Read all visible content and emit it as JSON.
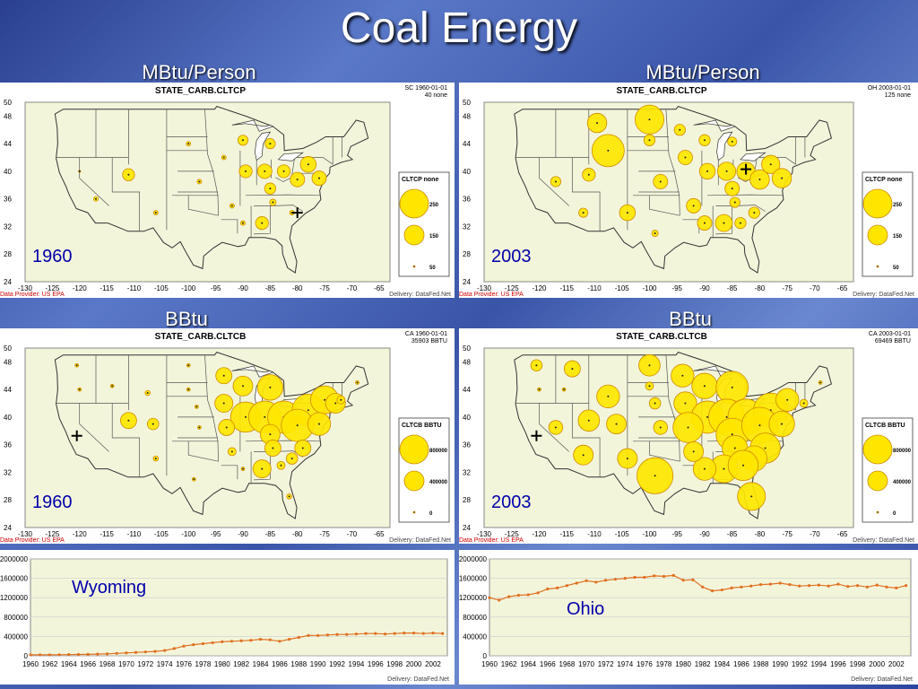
{
  "title": "Coal Energy",
  "subtitles": [
    "MBtu/Person",
    "MBtu/Person",
    "BBtu",
    "BBtu"
  ],
  "maps": [
    {
      "id": "tl",
      "header": "STATE_CARB.CLTCP",
      "corner": [
        "SC 1960-01-01",
        "40 none"
      ],
      "year": "1960",
      "provider": "Data Provider: US EPA",
      "delivery": "Delivery: DataFed.Net",
      "legend": {
        "title": "CLTCP none",
        "items": [
          "250",
          "150",
          "50"
        ],
        "values": [
          250,
          150,
          50
        ]
      },
      "bubbles": [
        [
          -120,
          40,
          1
        ],
        [
          -111,
          39.5,
          35
        ],
        [
          -90,
          44.5,
          25
        ],
        [
          -85,
          44,
          25
        ],
        [
          -89.5,
          40,
          40
        ],
        [
          -86,
          40,
          50
        ],
        [
          -82.5,
          40,
          40
        ],
        [
          -78,
          41,
          60
        ],
        [
          -85,
          37.5,
          30
        ],
        [
          -84.5,
          35.5,
          10
        ],
        [
          -86.5,
          32.5,
          40
        ],
        [
          -80,
          38.8,
          50
        ],
        [
          -76,
          39,
          50
        ],
        [
          -93.5,
          42,
          5
        ],
        [
          -100,
          44,
          5
        ],
        [
          -98,
          38.5,
          5
        ],
        [
          -92,
          35,
          5
        ],
        [
          -90,
          32.5,
          5
        ],
        [
          -81,
          34,
          5
        ],
        [
          -106,
          34,
          5
        ],
        [
          -117,
          36,
          5
        ]
      ],
      "cross": [
        -80,
        34
      ]
    },
    {
      "id": "tr",
      "header": "STATE_CARB.CLTCP",
      "corner": [
        "OH 2003-01-01",
        "125 none"
      ],
      "year": "2003",
      "provider": "Data Provider: US EPA",
      "delivery": "Delivery: DataFed.Net",
      "legend": {
        "title": "CLTCP none",
        "items": [
          "250",
          "150",
          "50"
        ],
        "values": [
          250,
          150,
          50
        ]
      },
      "bubbles": [
        [
          -107.5,
          43,
          250
        ],
        [
          -100,
          47.5,
          200
        ],
        [
          -109.5,
          47,
          90
        ],
        [
          -100,
          44.5,
          30
        ],
        [
          -98,
          38.5,
          50
        ],
        [
          -93.5,
          42,
          50
        ],
        [
          -94.5,
          46,
          30
        ],
        [
          -90,
          44.5,
          30
        ],
        [
          -85,
          44.3,
          20
        ],
        [
          -89.5,
          40,
          60
        ],
        [
          -86,
          40,
          80
        ],
        [
          -82.5,
          40,
          80
        ],
        [
          -78,
          41,
          80
        ],
        [
          -85,
          37.5,
          50
        ],
        [
          -84.5,
          35.5,
          25
        ],
        [
          -86.5,
          32.5,
          70
        ],
        [
          -90,
          32.5,
          50
        ],
        [
          -92,
          35,
          50
        ],
        [
          -80,
          38.8,
          90
        ],
        [
          -76,
          39,
          90
        ],
        [
          -104,
          34,
          60
        ],
        [
          -111,
          39.5,
          40
        ],
        [
          -117,
          38.5,
          25
        ],
        [
          -112,
          34,
          20
        ],
        [
          -99,
          31,
          10
        ],
        [
          -81,
          34,
          30
        ],
        [
          -83.5,
          32.5,
          30
        ]
      ],
      "cross": [
        -82.5,
        40.3
      ]
    },
    {
      "id": "bl",
      "header": "STATE_CARB.CLTCB",
      "corner": [
        "CA 1960-01-01",
        "35903 BBTU"
      ],
      "year": "1960",
      "provider": "Data Provider: US EPA",
      "delivery": "Delivery: DataFed.Net",
      "legend": {
        "title": "CLTCB BBTU",
        "items": [
          "800000",
          "400000",
          "0"
        ],
        "values": [
          800000,
          400000,
          0
        ]
      },
      "bubbles": [
        [
          -120.5,
          47.5,
          10000
        ],
        [
          -120,
          44,
          10000
        ],
        [
          -114,
          44.5,
          10000
        ],
        [
          -111,
          39.5,
          200000
        ],
        [
          -106.5,
          39,
          100000
        ],
        [
          -107.5,
          43.5,
          20000
        ],
        [
          -100,
          47.5,
          10000
        ],
        [
          -100,
          44,
          10000
        ],
        [
          -98.5,
          41.5,
          10000
        ],
        [
          -98,
          38.5,
          10000
        ],
        [
          -93.5,
          46,
          200000
        ],
        [
          -93.5,
          42,
          250000
        ],
        [
          -90,
          44.5,
          300000
        ],
        [
          -85,
          44.3,
          500000
        ],
        [
          -89.5,
          40,
          700000
        ],
        [
          -86,
          40,
          800000
        ],
        [
          -82.5,
          40,
          800000
        ],
        [
          -78,
          41,
          800000
        ],
        [
          -75,
          42.5,
          600000
        ],
        [
          -85,
          37.5,
          300000
        ],
        [
          -84.5,
          35.5,
          200000
        ],
        [
          -86.5,
          32.5,
          250000
        ],
        [
          -92,
          35,
          50000
        ],
        [
          -90,
          32.5,
          10000
        ],
        [
          -80,
          38.8,
          800000
        ],
        [
          -76,
          39,
          400000
        ],
        [
          -73,
          42,
          300000
        ],
        [
          -72,
          42.5,
          50000
        ],
        [
          -69,
          45,
          10000
        ],
        [
          -81.5,
          28.5,
          20000
        ],
        [
          -83,
          33,
          50000
        ],
        [
          -81,
          34,
          100000
        ],
        [
          -79,
          35.5,
          200000
        ],
        [
          -99,
          31,
          10000
        ],
        [
          -106,
          34,
          20000
        ],
        [
          -93,
          38.5,
          200000
        ]
      ],
      "cross": [
        -120.5,
        37.3
      ]
    },
    {
      "id": "br",
      "header": "STATE_CARB.CLTCB",
      "corner": [
        "CA 2003-01-01",
        "69469 BBTU"
      ],
      "year": "2003",
      "provider": "Data Provider: US EPA",
      "delivery": "Delivery: DataFed.Net",
      "legend": {
        "title": "CLTCB BBTU",
        "items": [
          "800000",
          "400000",
          "0"
        ],
        "values": [
          800000,
          400000,
          0
        ]
      },
      "bubbles": [
        [
          -120.5,
          47.5,
          100000
        ],
        [
          -120,
          44,
          10000
        ],
        [
          -114,
          47,
          200000
        ],
        [
          -115.5,
          44,
          10000
        ],
        [
          -111,
          39.5,
          350000
        ],
        [
          -107.5,
          43,
          400000
        ],
        [
          -106,
          39,
          300000
        ],
        [
          -104,
          34,
          300000
        ],
        [
          -112,
          34.5,
          300000
        ],
        [
          -117,
          38.5,
          150000
        ],
        [
          -100,
          47.5,
          350000
        ],
        [
          -100,
          44.5,
          50000
        ],
        [
          -99,
          42,
          100000
        ],
        [
          -98,
          38.5,
          150000
        ],
        [
          -99,
          31.5,
          1000000
        ],
        [
          -94,
          46,
          400000
        ],
        [
          -93.5,
          42,
          400000
        ],
        [
          -90,
          44.5,
          500000
        ],
        [
          -85,
          44.3,
          800000
        ],
        [
          -89.5,
          40,
          800000
        ],
        [
          -86,
          40,
          1000000
        ],
        [
          -82.5,
          40,
          1000000
        ],
        [
          -78,
          41,
          900000
        ],
        [
          -75,
          42.5,
          400000
        ],
        [
          -72,
          42,
          50000
        ],
        [
          -69,
          45,
          10000
        ],
        [
          -85,
          37.5,
          800000
        ],
        [
          -84.5,
          35.5,
          500000
        ],
        [
          -86.5,
          32.5,
          600000
        ],
        [
          -90,
          32.5,
          400000
        ],
        [
          -92,
          35,
          300000
        ],
        [
          -80,
          38.8,
          1000000
        ],
        [
          -76,
          39,
          500000
        ],
        [
          -79,
          35.5,
          700000
        ],
        [
          -81,
          34,
          500000
        ],
        [
          -83,
          33,
          700000
        ],
        [
          -81.5,
          28.5,
          600000
        ],
        [
          -93,
          38.5,
          700000
        ]
      ],
      "cross": [
        -120.5,
        37.3
      ]
    }
  ],
  "axes": {
    "xticks": [
      "-130",
      "-125",
      "-120",
      "-115",
      "-110",
      "-105",
      "-100",
      "-95",
      "-90",
      "-85",
      "-80",
      "-75",
      "-70",
      "-65"
    ],
    "yticks": [
      "50",
      "48",
      "44",
      "40",
      "36",
      "32",
      "28",
      "24"
    ]
  },
  "chart_data": [
    {
      "type": "line",
      "label": "Wyoming",
      "delivery": "Delivery: DataFed.Net",
      "x": [
        1960,
        1961,
        1962,
        1963,
        1964,
        1965,
        1966,
        1967,
        1968,
        1969,
        1970,
        1971,
        1972,
        1973,
        1974,
        1975,
        1976,
        1977,
        1978,
        1979,
        1980,
        1981,
        1982,
        1983,
        1984,
        1985,
        1986,
        1987,
        1988,
        1989,
        1990,
        1991,
        1992,
        1993,
        1994,
        1995,
        1996,
        1997,
        1998,
        1999,
        2000,
        2001,
        2002,
        2003
      ],
      "y": [
        20000,
        20000,
        20000,
        22000,
        25000,
        28000,
        30000,
        35000,
        40000,
        50000,
        60000,
        70000,
        80000,
        90000,
        110000,
        150000,
        200000,
        230000,
        250000,
        270000,
        290000,
        300000,
        310000,
        320000,
        340000,
        330000,
        300000,
        340000,
        380000,
        420000,
        420000,
        430000,
        440000,
        440000,
        450000,
        460000,
        460000,
        450000,
        460000,
        470000,
        470000,
        460000,
        470000,
        460000
      ],
      "yticks": [
        "2000000",
        "1600000",
        "1200000",
        "800000",
        "400000",
        "0"
      ],
      "ylim": [
        0,
        2000000
      ],
      "xticks": [
        "1960",
        "1962",
        "1964",
        "1966",
        "1968",
        "1970",
        "1972",
        "1974",
        "1976",
        "1978",
        "1980",
        "1982",
        "1984",
        "1986",
        "1988",
        "1990",
        "1992",
        "1994",
        "1996",
        "1998",
        "2000",
        "2002"
      ]
    },
    {
      "type": "line",
      "label": "Ohio",
      "delivery": "Delivery: DataFed.Net",
      "x": [
        1960,
        1961,
        1962,
        1963,
        1964,
        1965,
        1966,
        1967,
        1968,
        1969,
        1970,
        1971,
        1972,
        1973,
        1974,
        1975,
        1976,
        1977,
        1978,
        1979,
        1980,
        1981,
        1982,
        1983,
        1984,
        1985,
        1986,
        1987,
        1988,
        1989,
        1990,
        1991,
        1992,
        1993,
        1994,
        1995,
        1996,
        1997,
        1998,
        1999,
        2000,
        2001,
        2002,
        2003
      ],
      "y": [
        1200000,
        1150000,
        1220000,
        1250000,
        1260000,
        1300000,
        1380000,
        1400000,
        1450000,
        1500000,
        1550000,
        1520000,
        1560000,
        1580000,
        1600000,
        1620000,
        1620000,
        1650000,
        1640000,
        1660000,
        1560000,
        1570000,
        1420000,
        1340000,
        1360000,
        1400000,
        1420000,
        1440000,
        1470000,
        1480000,
        1500000,
        1470000,
        1440000,
        1450000,
        1460000,
        1440000,
        1480000,
        1430000,
        1450000,
        1420000,
        1460000,
        1420000,
        1400000,
        1450000
      ],
      "yticks": [
        "2000000",
        "1600000",
        "1200000",
        "800000",
        "400000",
        "0"
      ],
      "ylim": [
        0,
        2000000
      ],
      "xticks": [
        "1960",
        "1962",
        "1964",
        "1966",
        "1968",
        "1970",
        "1972",
        "1974",
        "1976",
        "1978",
        "1980",
        "1982",
        "1984",
        "1986",
        "1988",
        "1990",
        "1992",
        "1994",
        "1996",
        "1998",
        "2000",
        "2002"
      ]
    }
  ]
}
